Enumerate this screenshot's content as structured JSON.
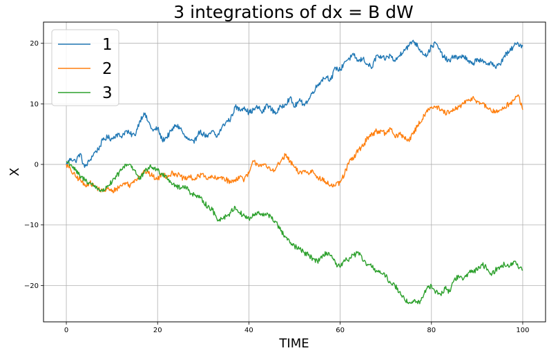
{
  "chart_data": {
    "type": "line",
    "title": "3 integrations of  dx =   B dW",
    "xlabel": "TIME",
    "ylabel": "X",
    "xlim": [
      -5,
      105
    ],
    "ylim": [
      -26,
      23.5
    ],
    "xticks": [
      0,
      20,
      40,
      60,
      80,
      100
    ],
    "yticks": [
      -20,
      -10,
      0,
      10,
      20
    ],
    "xtick_labels": [
      "0",
      "20",
      "40",
      "60",
      "80",
      "100"
    ],
    "ytick_labels": [
      "−20",
      "−10",
      "0",
      "10",
      "20"
    ],
    "grid": true,
    "legend_position": "top-left",
    "series": [
      {
        "name": "1",
        "color": "#1f77b4",
        "x": [
          0,
          1,
          2,
          3,
          4,
          5,
          6,
          7,
          8,
          9,
          10,
          11,
          12,
          13,
          14,
          15,
          16,
          17,
          18,
          19,
          20,
          21,
          22,
          23,
          24,
          25,
          26,
          27,
          28,
          29,
          30,
          31,
          32,
          33,
          34,
          35,
          36,
          37,
          38,
          39,
          40,
          41,
          42,
          43,
          44,
          45,
          46,
          47,
          48,
          49,
          50,
          51,
          52,
          53,
          54,
          55,
          56,
          57,
          58,
          59,
          60,
          61,
          62,
          63,
          64,
          65,
          66,
          67,
          68,
          69,
          70,
          71,
          72,
          73,
          74,
          75,
          76,
          77,
          78,
          79,
          80,
          81,
          82,
          83,
          84,
          85,
          86,
          87,
          88,
          89,
          90,
          91,
          92,
          93,
          94,
          95,
          96,
          97,
          98,
          99,
          100
        ],
        "y": [
          0,
          1,
          0.5,
          1.8,
          -0.5,
          0.5,
          1.8,
          2.5,
          4,
          4.5,
          4.2,
          5,
          4.6,
          5.5,
          5,
          4.8,
          7,
          8.5,
          7,
          5.5,
          6,
          4,
          4.5,
          5.5,
          6.5,
          6,
          4.5,
          4,
          3.5,
          5.5,
          5,
          4.5,
          5.5,
          4.5,
          6,
          7,
          7.5,
          9.5,
          9,
          9.5,
          8.5,
          9,
          9.5,
          8.5,
          10,
          9,
          8.5,
          9.5,
          10,
          11,
          9.5,
          10.5,
          10,
          10.5,
          12,
          13,
          14,
          14.5,
          14,
          16,
          15.5,
          17,
          17.5,
          18,
          17,
          17.5,
          16.5,
          16,
          18,
          17.5,
          17.5,
          18,
          17,
          18,
          19,
          19.5,
          20.5,
          19.5,
          18.5,
          18,
          19.5,
          20,
          18.5,
          17.5,
          17,
          18,
          17.5,
          18,
          17,
          16.5,
          17.5,
          17,
          16.5,
          17,
          16,
          16.5,
          18,
          18.5,
          19.5,
          20,
          19.5
        ]
      },
      {
        "name": "2",
        "color": "#ff7f0e",
        "x": [
          0,
          1,
          2,
          3,
          4,
          5,
          6,
          7,
          8,
          9,
          10,
          11,
          12,
          13,
          14,
          15,
          16,
          17,
          18,
          19,
          20,
          21,
          22,
          23,
          24,
          25,
          26,
          27,
          28,
          29,
          30,
          31,
          32,
          33,
          34,
          35,
          36,
          37,
          38,
          39,
          40,
          41,
          42,
          43,
          44,
          45,
          46,
          47,
          48,
          49,
          50,
          51,
          52,
          53,
          54,
          55,
          56,
          57,
          58,
          59,
          60,
          61,
          62,
          63,
          64,
          65,
          66,
          67,
          68,
          69,
          70,
          71,
          72,
          73,
          74,
          75,
          76,
          77,
          78,
          79,
          80,
          81,
          82,
          83,
          84,
          85,
          86,
          87,
          88,
          89,
          90,
          91,
          92,
          93,
          94,
          95,
          96,
          97,
          98,
          99,
          100
        ],
        "y": [
          0,
          -1,
          -2,
          -2.5,
          -3.5,
          -3,
          -3.5,
          -4,
          -4.5,
          -4,
          -4.5,
          -4,
          -3.5,
          -3,
          -3.5,
          -2.5,
          -2,
          -1,
          -1.5,
          -2,
          -2.5,
          -1.5,
          -2,
          -1.5,
          -1.5,
          -2,
          -2.5,
          -2,
          -2.5,
          -2,
          -1.5,
          -2.5,
          -2,
          -2.5,
          -2,
          -2.5,
          -3,
          -2.5,
          -2,
          -2.5,
          -1.5,
          0.5,
          0,
          0,
          -0.5,
          -1,
          -0.5,
          0.5,
          1.5,
          0.5,
          -0.5,
          -1.5,
          -1,
          -1.5,
          -1,
          -2,
          -2.5,
          -3,
          -3.5,
          -3.5,
          -3,
          -1.5,
          0.5,
          1,
          2.5,
          3,
          4.5,
          5,
          5.5,
          5.5,
          5,
          6,
          4.5,
          5,
          4.5,
          4,
          5,
          6.5,
          7.5,
          9,
          9.5,
          9.5,
          9,
          8.5,
          8.5,
          9,
          9.5,
          10,
          10.5,
          11,
          10.5,
          10,
          9.5,
          9,
          8.5,
          9,
          9.5,
          10,
          10.5,
          11.5,
          9
        ]
      },
      {
        "name": "3",
        "color": "#2ca02c",
        "x": [
          0,
          1,
          2,
          3,
          4,
          5,
          6,
          7,
          8,
          9,
          10,
          11,
          12,
          13,
          14,
          15,
          16,
          17,
          18,
          19,
          20,
          21,
          22,
          23,
          24,
          25,
          26,
          27,
          28,
          29,
          30,
          31,
          32,
          33,
          34,
          35,
          36,
          37,
          38,
          39,
          40,
          41,
          42,
          43,
          44,
          45,
          46,
          47,
          48,
          49,
          50,
          51,
          52,
          53,
          54,
          55,
          56,
          57,
          58,
          59,
          60,
          61,
          62,
          63,
          64,
          65,
          66,
          67,
          68,
          69,
          70,
          71,
          72,
          73,
          74,
          75,
          76,
          77,
          78,
          79,
          80,
          81,
          82,
          83,
          84,
          85,
          86,
          87,
          88,
          89,
          90,
          91,
          92,
          93,
          94,
          95,
          96,
          97,
          98,
          99,
          100
        ],
        "y": [
          0.5,
          0,
          -1,
          -2,
          -2.5,
          -3,
          -3.5,
          -4,
          -4.5,
          -3.5,
          -3,
          -2,
          -1,
          0,
          0,
          -1,
          -2.5,
          -1.5,
          -0.5,
          -0.5,
          -1,
          -1.5,
          -2,
          -3,
          -3.5,
          -4,
          -3.5,
          -4.5,
          -5,
          -5.5,
          -6,
          -7,
          -7.5,
          -9,
          -9,
          -8.5,
          -8,
          -7,
          -8,
          -8.5,
          -9,
          -8.5,
          -8,
          -8.5,
          -8,
          -9,
          -9.5,
          -11,
          -12,
          -13,
          -13.5,
          -14,
          -14.5,
          -15,
          -15.5,
          -16,
          -15.5,
          -14.5,
          -15,
          -16.5,
          -17,
          -16,
          -15.5,
          -15,
          -14.5,
          -16,
          -16.5,
          -17,
          -17.5,
          -18,
          -18.5,
          -19.5,
          -20,
          -21,
          -22,
          -23,
          -22.5,
          -23,
          -22,
          -20.5,
          -20,
          -21,
          -21.5,
          -20.5,
          -21,
          -19,
          -18.5,
          -19,
          -18,
          -17.5,
          -17.5,
          -16.5,
          -17,
          -18,
          -17.5,
          -17,
          -16.5,
          -17,
          -16,
          -17,
          -17.5
        ]
      }
    ]
  }
}
